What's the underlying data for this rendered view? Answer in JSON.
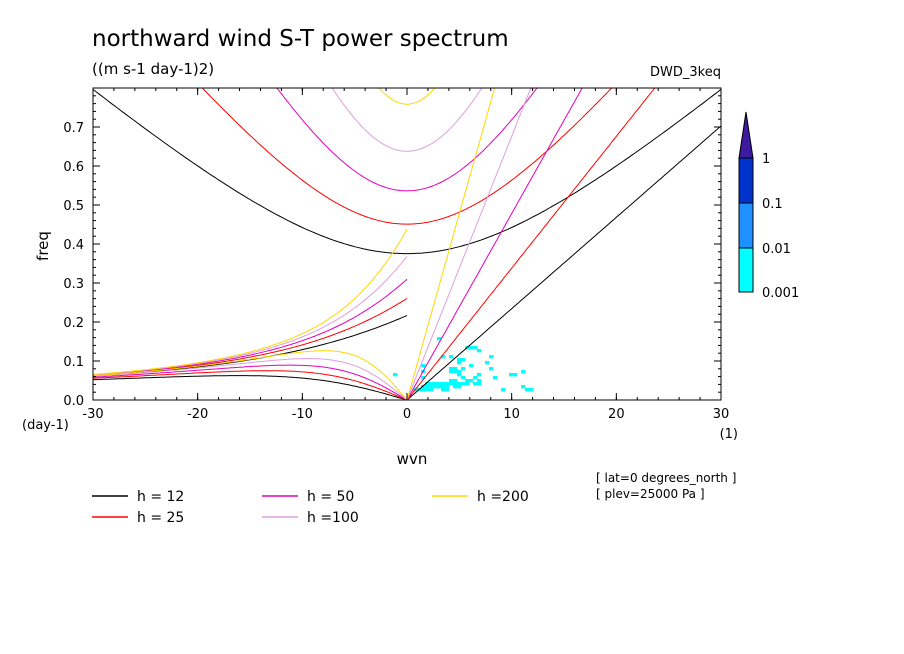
{
  "chart_data": {
    "type": "heatmap",
    "title": "northward wind S-T power spectrum",
    "subtitle": "((m s-1 day-1)2)",
    "dataset": "DWD_3keq",
    "xlabel": "wvn",
    "ylabel": "freq",
    "x_unit": "(1)",
    "y_unit": "(day-1)",
    "xlim": [
      -30,
      30
    ],
    "ylim": [
      0,
      0.8
    ],
    "x_ticks": [
      -30,
      -20,
      -10,
      0,
      10,
      20,
      30
    ],
    "x_tick_labels": [
      "-30",
      "-20",
      "-10",
      "0",
      "10",
      "20",
      "30"
    ],
    "y_ticks": [
      0,
      0.1,
      0.2,
      0.3,
      0.4,
      0.5,
      0.6,
      0.7
    ],
    "y_tick_labels": [
      "0.0",
      "0.1",
      "0.2",
      "0.3",
      "0.4",
      "0.5",
      "0.6",
      "0.7"
    ],
    "colorbar": {
      "levels": [
        "0.001",
        "0.01",
        "0.1",
        "1"
      ],
      "colors": [
        "#00ffff",
        "#1e90ff",
        "#0033cc",
        "#3d1a9e"
      ]
    },
    "dispersion_curves": [
      {
        "name": "h = 12",
        "h": 12,
        "color": "#000000"
      },
      {
        "name": "h = 25",
        "h": 25,
        "color": "#ff0000"
      },
      {
        "name": "h = 50",
        "h": 50,
        "color": "#e000c0"
      },
      {
        "name": "h =100",
        "h": 100,
        "color": "#dda0dd"
      },
      {
        "name": "h =200",
        "h": 200,
        "color": "#ffd700"
      }
    ],
    "annotations": [
      "[ lat=0 degrees_north ]",
      "[ plev=25000 Pa ]"
    ]
  }
}
